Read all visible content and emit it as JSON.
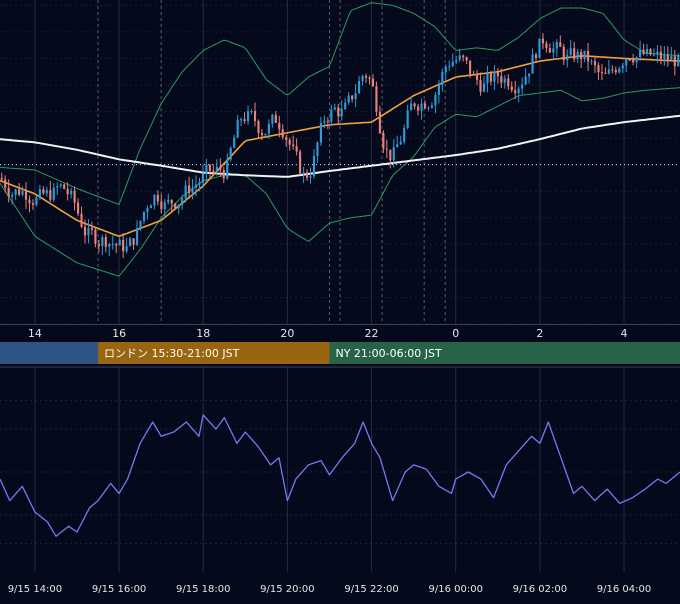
{
  "colors": {
    "background": "#05091c",
    "grid": "#2a2f48",
    "candle_up": "#2e9bd8",
    "candle_down": "#e8837a",
    "ma_short": "#f3a13a",
    "ma_long": "#f2f2f2",
    "bollinger": "#2d9b5c",
    "oscillator": "#6f7cf0",
    "session_asia": "#2d5482",
    "session_london": "#9a6510",
    "session_ny": "#276447",
    "text": "#e6e6e6"
  },
  "sessions": [
    {
      "label": "",
      "from": 12.0,
      "to": 15.5,
      "color_key": "session_asia"
    },
    {
      "label": "ロンドン 15:30-21:00 JST",
      "from": 15.5,
      "to": 21.0,
      "color_key": "session_london"
    },
    {
      "label": "NY 21:00-06:00 JST",
      "from": 21.0,
      "to": 30.0,
      "color_key": "session_ny"
    }
  ],
  "chart_data": [
    {
      "type": "candlestick",
      "title": "",
      "x_tick_labels": [
        "14",
        "16",
        "18",
        "20",
        "22",
        "0",
        "2",
        "4"
      ],
      "x_tick_hours": [
        14,
        16,
        18,
        20,
        22,
        24,
        26,
        28
      ],
      "x_range_hours": [
        13.17,
        29.33
      ],
      "session_boundary_hours": [
        15.5,
        17.0,
        21.0,
        21.25,
        22.25,
        23.25,
        23.75
      ],
      "reference_line_level": 0.0,
      "y_range": [
        -3.0,
        3.1
      ],
      "grid": true,
      "legend": "none",
      "moving_average_short": [
        [
          13.17,
          -0.3
        ],
        [
          14.0,
          -0.55
        ],
        [
          15.0,
          -1.05
        ],
        [
          16.0,
          -1.35
        ],
        [
          17.0,
          -1.05
        ],
        [
          18.0,
          -0.4
        ],
        [
          19.0,
          0.45
        ],
        [
          20.0,
          0.6
        ],
        [
          21.0,
          0.75
        ],
        [
          22.0,
          0.8
        ],
        [
          23.0,
          1.3
        ],
        [
          24.0,
          1.65
        ],
        [
          25.0,
          1.75
        ],
        [
          26.0,
          1.95
        ],
        [
          27.0,
          2.05
        ],
        [
          28.0,
          2.0
        ],
        [
          29.33,
          1.95
        ]
      ],
      "moving_average_long": [
        [
          13.17,
          0.48
        ],
        [
          14.0,
          0.42
        ],
        [
          15.0,
          0.28
        ],
        [
          16.0,
          0.1
        ],
        [
          17.0,
          -0.02
        ],
        [
          18.0,
          -0.15
        ],
        [
          19.0,
          -0.2
        ],
        [
          20.0,
          -0.23
        ],
        [
          21.0,
          -0.12
        ],
        [
          22.0,
          -0.02
        ],
        [
          23.0,
          0.08
        ],
        [
          24.0,
          0.18
        ],
        [
          25.0,
          0.3
        ],
        [
          26.0,
          0.48
        ],
        [
          27.0,
          0.68
        ],
        [
          28.0,
          0.8
        ],
        [
          29.33,
          0.92
        ]
      ],
      "bollinger_upper": [
        [
          13.17,
          -0.05
        ],
        [
          14.0,
          -0.1
        ],
        [
          15.0,
          -0.45
        ],
        [
          16.0,
          -0.75
        ],
        [
          16.5,
          0.3
        ],
        [
          17.0,
          1.15
        ],
        [
          17.5,
          1.75
        ],
        [
          18.0,
          2.15
        ],
        [
          18.5,
          2.35
        ],
        [
          19.0,
          2.2
        ],
        [
          19.5,
          1.6
        ],
        [
          20.0,
          1.3
        ],
        [
          20.5,
          1.65
        ],
        [
          21.0,
          1.85
        ],
        [
          21.5,
          2.9
        ],
        [
          22.0,
          3.05
        ],
        [
          22.5,
          3.0
        ],
        [
          23.0,
          2.85
        ],
        [
          23.5,
          2.6
        ],
        [
          24.0,
          2.15
        ],
        [
          24.5,
          2.2
        ],
        [
          25.0,
          2.15
        ],
        [
          25.5,
          2.4
        ],
        [
          26.0,
          2.75
        ],
        [
          26.5,
          2.95
        ],
        [
          27.0,
          2.95
        ],
        [
          27.5,
          2.85
        ],
        [
          28.0,
          2.35
        ],
        [
          28.5,
          2.1
        ],
        [
          29.33,
          2.05
        ]
      ],
      "bollinger_lower": [
        [
          13.17,
          -0.35
        ],
        [
          14.0,
          -1.35
        ],
        [
          15.0,
          -1.85
        ],
        [
          16.0,
          -2.1
        ],
        [
          16.5,
          -1.6
        ],
        [
          17.0,
          -1.0
        ],
        [
          17.5,
          -0.6
        ],
        [
          18.0,
          -0.3
        ],
        [
          18.5,
          -0.2
        ],
        [
          19.0,
          -0.2
        ],
        [
          19.5,
          -0.55
        ],
        [
          20.0,
          -1.2
        ],
        [
          20.5,
          -1.45
        ],
        [
          21.0,
          -1.1
        ],
        [
          21.5,
          -1.0
        ],
        [
          22.0,
          -0.95
        ],
        [
          22.5,
          -0.2
        ],
        [
          23.0,
          0.15
        ],
        [
          23.5,
          0.7
        ],
        [
          24.0,
          0.95
        ],
        [
          24.5,
          0.9
        ],
        [
          25.0,
          1.1
        ],
        [
          25.5,
          1.3
        ],
        [
          26.0,
          1.35
        ],
        [
          26.5,
          1.4
        ],
        [
          27.0,
          1.2
        ],
        [
          27.5,
          1.25
        ],
        [
          28.0,
          1.35
        ],
        [
          28.5,
          1.4
        ],
        [
          29.33,
          1.45
        ]
      ]
    },
    {
      "type": "line",
      "title": "",
      "x_tick_labels": [
        "9/15 14:00",
        "9/15 16:00",
        "9/15 18:00",
        "9/15 20:00",
        "9/15 22:00",
        "9/16 00:00",
        "9/16 02:00",
        "9/16 04:00"
      ],
      "x_tick_hours": [
        14,
        16,
        18,
        20,
        22,
        24,
        26,
        28
      ],
      "x_range_hours": [
        13.17,
        29.33
      ],
      "y_range": [
        -70,
        70
      ],
      "grid": true,
      "legend": "none",
      "series": [
        {
          "values": [
            [
              13.17,
              -5
            ],
            [
              13.4,
              -20
            ],
            [
              13.7,
              -10
            ],
            [
              14.0,
              -28
            ],
            [
              14.3,
              -35
            ],
            [
              14.5,
              -45
            ],
            [
              14.8,
              -38
            ],
            [
              15.0,
              -42
            ],
            [
              15.3,
              -25
            ],
            [
              15.5,
              -20
            ],
            [
              15.8,
              -8
            ],
            [
              16.0,
              -15
            ],
            [
              16.2,
              -5
            ],
            [
              16.5,
              20
            ],
            [
              16.8,
              35
            ],
            [
              17.0,
              25
            ],
            [
              17.3,
              28
            ],
            [
              17.6,
              35
            ],
            [
              17.9,
              25
            ],
            [
              18.0,
              40
            ],
            [
              18.3,
              30
            ],
            [
              18.5,
              38
            ],
            [
              18.8,
              20
            ],
            [
              19.0,
              28
            ],
            [
              19.3,
              18
            ],
            [
              19.6,
              5
            ],
            [
              19.8,
              10
            ],
            [
              20.0,
              -20
            ],
            [
              20.2,
              -5
            ],
            [
              20.5,
              5
            ],
            [
              20.8,
              8
            ],
            [
              21.0,
              -2
            ],
            [
              21.3,
              10
            ],
            [
              21.6,
              20
            ],
            [
              21.8,
              35
            ],
            [
              22.0,
              20
            ],
            [
              22.2,
              10
            ],
            [
              22.5,
              -20
            ],
            [
              22.8,
              0
            ],
            [
              23.0,
              5
            ],
            [
              23.3,
              2
            ],
            [
              23.6,
              -10
            ],
            [
              23.9,
              -15
            ],
            [
              24.0,
              -5
            ],
            [
              24.3,
              0
            ],
            [
              24.6,
              -5
            ],
            [
              24.9,
              -18
            ],
            [
              25.2,
              5
            ],
            [
              25.5,
              15
            ],
            [
              25.8,
              25
            ],
            [
              26.0,
              20
            ],
            [
              26.2,
              35
            ],
            [
              26.5,
              10
            ],
            [
              26.8,
              -15
            ],
            [
              27.0,
              -10
            ],
            [
              27.3,
              -20
            ],
            [
              27.6,
              -12
            ],
            [
              27.9,
              -22
            ],
            [
              28.2,
              -18
            ],
            [
              28.5,
              -12
            ],
            [
              28.8,
              -5
            ],
            [
              29.0,
              -8
            ],
            [
              29.33,
              0
            ]
          ]
        }
      ]
    }
  ]
}
